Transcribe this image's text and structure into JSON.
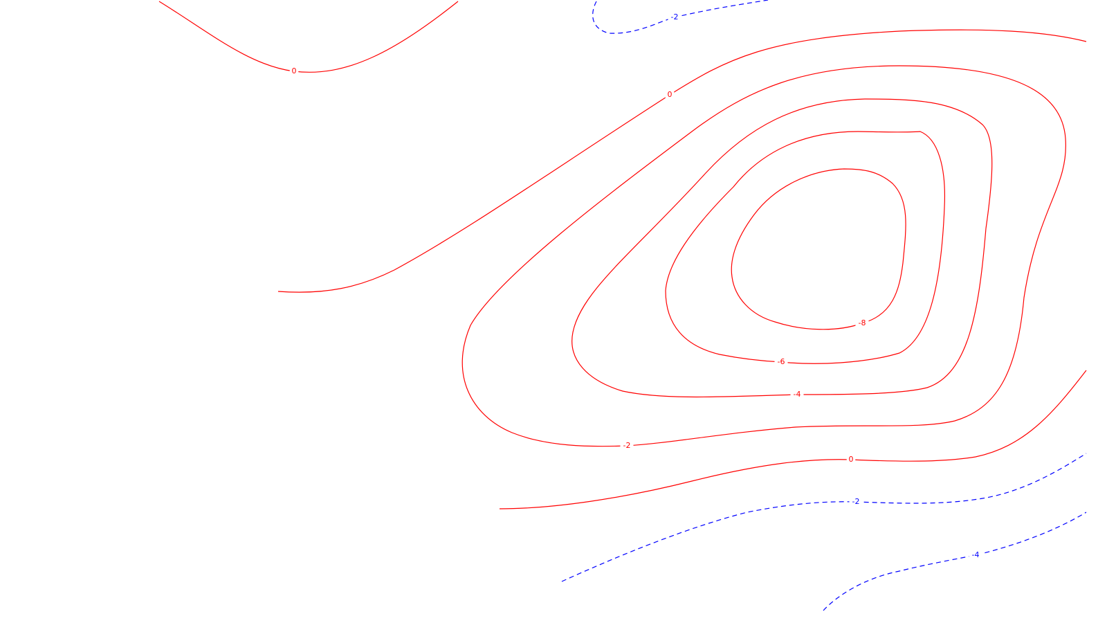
{
  "chart_data": {
    "type": "contour",
    "title": "",
    "xlabel": "",
    "ylabel": "",
    "grid": false,
    "legend": "none",
    "colors": {
      "solid": "#ff0000",
      "dashed": "#0000ff"
    },
    "contours": [
      {
        "level": "0",
        "style": "solid",
        "color": "#ff0000",
        "labels": [
          "0"
        ]
      },
      {
        "level": "0",
        "style": "solid",
        "color": "#ff0000",
        "labels": [
          "0"
        ]
      },
      {
        "level": "0",
        "style": "solid",
        "color": "#ff0000",
        "labels": [
          "0"
        ]
      },
      {
        "level": "-2",
        "style": "solid",
        "color": "#ff0000",
        "labels": [
          "-2"
        ]
      },
      {
        "level": "-4",
        "style": "solid",
        "color": "#ff0000",
        "labels": [
          "-4"
        ]
      },
      {
        "level": "-6",
        "style": "solid",
        "color": "#ff0000",
        "labels": [
          "-6"
        ]
      },
      {
        "level": "-8",
        "style": "solid",
        "color": "#ff0000",
        "labels": [
          "-8"
        ]
      },
      {
        "level": "-2",
        "style": "dashed",
        "color": "#0000ff",
        "labels": [
          "-2"
        ]
      },
      {
        "level": "-2",
        "style": "dashed",
        "color": "#0000ff",
        "labels": [
          "-2"
        ]
      },
      {
        "level": "-4",
        "style": "dashed",
        "color": "#0000ff",
        "labels": [
          "-4"
        ]
      }
    ]
  }
}
